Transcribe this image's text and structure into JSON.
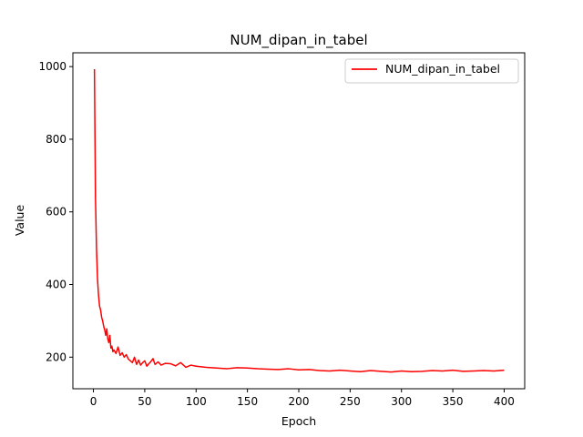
{
  "chart_data": {
    "type": "line",
    "title": "NUM_dipan_in_tabel",
    "xlabel": "Epoch",
    "ylabel": "Value",
    "xlim": [
      -20,
      420
    ],
    "ylim": [
      113,
      1038
    ],
    "xticks": [
      0,
      50,
      100,
      150,
      200,
      250,
      300,
      350,
      400
    ],
    "yticks": [
      200,
      400,
      600,
      800,
      1000
    ],
    "grid": false,
    "legend": {
      "placement": "top-right"
    },
    "series": [
      {
        "name": "NUM_dipan_in_tabel",
        "color": "#ff0000",
        "x": [
          1,
          2,
          3,
          4,
          5,
          6,
          7,
          8,
          9,
          10,
          11,
          12,
          13,
          14,
          15,
          16,
          17,
          18,
          19,
          20,
          22,
          24,
          26,
          28,
          30,
          32,
          34,
          36,
          38,
          40,
          42,
          44,
          46,
          48,
          50,
          52,
          54,
          56,
          58,
          60,
          63,
          66,
          70,
          75,
          80,
          85,
          90,
          95,
          100,
          110,
          120,
          130,
          140,
          150,
          160,
          170,
          180,
          190,
          200,
          210,
          220,
          230,
          240,
          250,
          260,
          270,
          280,
          290,
          300,
          310,
          320,
          330,
          340,
          350,
          360,
          370,
          380,
          390,
          400
        ],
        "y": [
          993,
          640,
          500,
          415,
          370,
          340,
          330,
          310,
          300,
          285,
          275,
          260,
          278,
          250,
          240,
          260,
          225,
          230,
          215,
          220,
          210,
          228,
          205,
          212,
          200,
          207,
          195,
          190,
          185,
          200,
          180,
          192,
          178,
          185,
          190,
          175,
          182,
          188,
          196,
          180,
          187,
          178,
          183,
          182,
          176,
          185,
          172,
          178,
          175,
          172,
          170,
          168,
          171,
          170,
          168,
          167,
          166,
          168,
          165,
          166,
          163,
          162,
          164,
          162,
          160,
          163,
          161,
          159,
          162,
          160,
          161,
          163,
          162,
          164,
          161,
          162,
          163,
          162,
          164
        ]
      }
    ]
  }
}
